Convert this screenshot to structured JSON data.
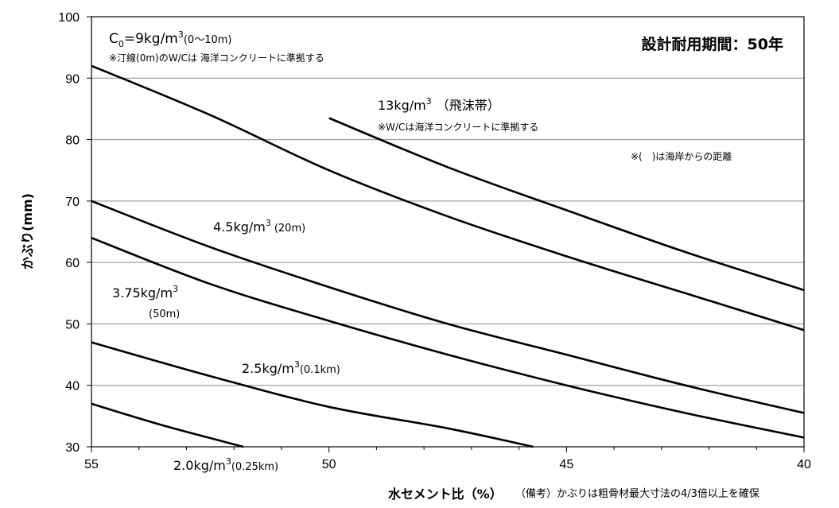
{
  "chart_data": {
    "type": "line",
    "title": "設計耐用期間：50年",
    "xlabel": "水セメント比（%）",
    "ylabel": "かぶり(mm)",
    "xlim": [
      55,
      40
    ],
    "ylim": [
      30,
      100
    ],
    "x_ticks": [
      "55",
      "50",
      "45",
      "40"
    ],
    "y_ticks": [
      "30",
      "40",
      "50",
      "60",
      "70",
      "80",
      "90",
      "100"
    ],
    "grid": "horizontal",
    "series": [
      {
        "name": "C0=9kg/m3(0〜10m)",
        "x": [
          55,
          52.5,
          50,
          47.5,
          45,
          42.5,
          40
        ],
        "y": [
          92,
          84,
          75,
          67.5,
          61,
          55,
          49
        ]
      },
      {
        "name": "13kg/m3（飛沫帯）",
        "x": [
          50,
          47.5,
          45,
          42.5,
          40
        ],
        "y": [
          83.5,
          75.5,
          68.5,
          61.7,
          55.5
        ]
      },
      {
        "name": "4.5kg/m3(20m)",
        "x": [
          55,
          52.5,
          50,
          47.5,
          45,
          42.5,
          40
        ],
        "y": [
          70,
          62.5,
          56,
          50,
          45,
          40,
          35.5
        ]
      },
      {
        "name": "3.75kg/m3(50m)",
        "x": [
          55,
          52.5,
          50,
          47.5,
          45,
          42.5,
          40
        ],
        "y": [
          64,
          56.5,
          50.5,
          45,
          40,
          35.5,
          31.5
        ]
      },
      {
        "name": "2.5kg/m3(0.1km)",
        "x": [
          55,
          52.5,
          50,
          47.5,
          45.7
        ],
        "y": [
          47,
          41.5,
          36.5,
          33,
          30
        ]
      },
      {
        "name": "2.0kg/m3(0.25km)",
        "x": [
          55,
          53.5,
          51.8
        ],
        "y": [
          37,
          33.5,
          30
        ]
      }
    ],
    "annotations": {
      "c0_label": "=9kg/m",
      "c0_var": "C",
      "c0_sub": "0",
      "c0_sup": "3",
      "c0_range": "(0〜10m)",
      "c0_note": "※汀線(0m)のW/Cは 海洋コンクリートに準拠する",
      "l13_main": "13kg/m",
      "l13_sup": "3",
      "l13_zone": "（飛沫帯）",
      "l13_note": "※W/Cは海洋コンクリートに準拠する",
      "distance_note": "※(　)は海岸からの距離",
      "l45_main": "4.5kg/m",
      "l45_sup": "3",
      "l45_dist": "(20m)",
      "l375_main": "3.75kg/m",
      "l375_sup": "3",
      "l375_dist": "(50m)",
      "l25_main": "2.5kg/m",
      "l25_sup": "3",
      "l25_dist": "(0.1km)",
      "l20_main": "2.0kg/m",
      "l20_sup": "3",
      "l20_dist": "(0.25km)"
    },
    "remark": "（備考）かぶりは粗骨材最大寸法の4/3倍以上を確保"
  }
}
